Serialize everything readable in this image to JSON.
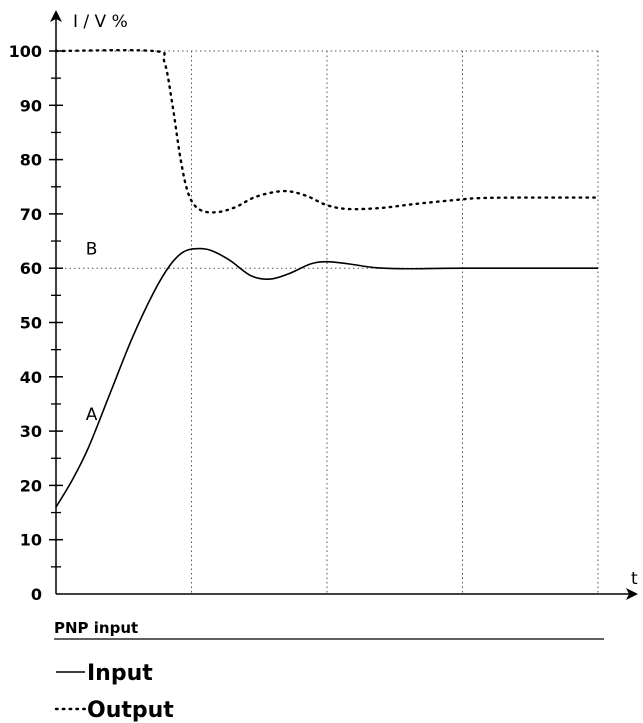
{
  "chart_data": {
    "type": "line",
    "ylabel": "I / V %",
    "xlabel": "t",
    "ylim": [
      0,
      100
    ],
    "yticks": [
      0,
      10,
      20,
      30,
      40,
      50,
      60,
      70,
      80,
      90,
      100
    ],
    "xlim": [
      0,
      10
    ],
    "x_gridlines": [
      2.5,
      5,
      7.5,
      10
    ],
    "y_reference_lines": [
      100,
      60
    ],
    "series": [
      {
        "name": "Input",
        "style": "solid",
        "points": [
          [
            0,
            16
          ],
          [
            0.3,
            21
          ],
          [
            0.6,
            27
          ],
          [
            1.0,
            37
          ],
          [
            1.4,
            47
          ],
          [
            1.8,
            55.5
          ],
          [
            2.1,
            60.5
          ],
          [
            2.35,
            63
          ],
          [
            2.6,
            63.6
          ],
          [
            2.85,
            63.3
          ],
          [
            3.2,
            61.5
          ],
          [
            3.6,
            58.6
          ],
          [
            3.95,
            58
          ],
          [
            4.3,
            59
          ],
          [
            4.7,
            60.8
          ],
          [
            5.0,
            61.2
          ],
          [
            5.4,
            60.8
          ],
          [
            5.9,
            60.1
          ],
          [
            6.5,
            59.9
          ],
          [
            7.5,
            60
          ],
          [
            10,
            60
          ]
        ]
      },
      {
        "name": "Output",
        "style": "dotted",
        "points": [
          [
            0,
            100
          ],
          [
            1.8,
            100
          ],
          [
            2.0,
            98
          ],
          [
            2.15,
            90
          ],
          [
            2.3,
            80
          ],
          [
            2.45,
            73.5
          ],
          [
            2.65,
            70.8
          ],
          [
            2.95,
            70.3
          ],
          [
            3.3,
            71.2
          ],
          [
            3.7,
            73.2
          ],
          [
            4.2,
            74.2
          ],
          [
            4.6,
            73.4
          ],
          [
            5.0,
            71.6
          ],
          [
            5.4,
            70.9
          ],
          [
            6.0,
            71.1
          ],
          [
            6.6,
            71.8
          ],
          [
            7.3,
            72.5
          ],
          [
            7.8,
            72.9
          ],
          [
            8.5,
            73
          ],
          [
            10,
            73
          ]
        ]
      }
    ],
    "annotations": [
      {
        "text": "A",
        "x": 0.55,
        "y": 32
      },
      {
        "text": "B",
        "x": 0.55,
        "y": 62.5
      }
    ],
    "caption": "PNP input",
    "legend": {
      "placement": "bottom-left",
      "entries": [
        {
          "label": "Input",
          "style": "solid"
        },
        {
          "label": "Output",
          "style": "dotted"
        }
      ]
    },
    "grid": "dotted"
  }
}
